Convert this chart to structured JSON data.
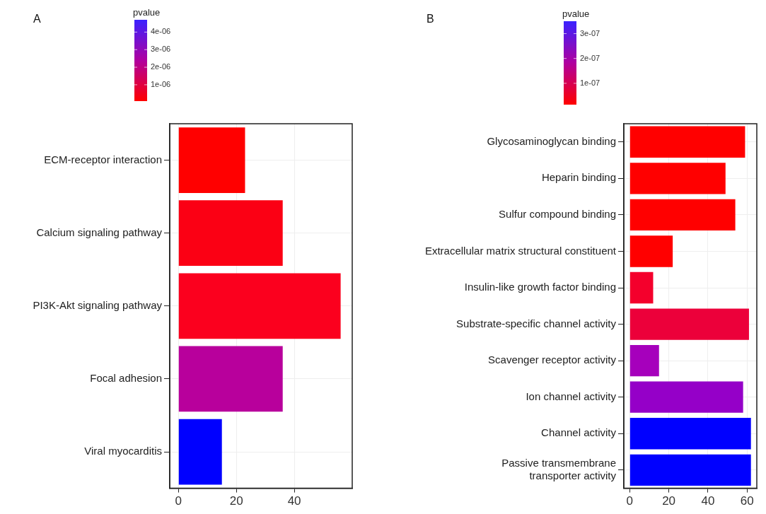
{
  "chart_data": [
    {
      "type": "bar",
      "title": "A",
      "orientation": "horizontal",
      "clabel": "pvalue",
      "clim": [
        7e-08,
        4.7e-06
      ],
      "cticks": [
        {
          "value": 1e-06,
          "label": "1e-06"
        },
        {
          "value": 2e-06,
          "label": "2e-06"
        },
        {
          "value": 3e-06,
          "label": "3e-06"
        },
        {
          "value": 4e-06,
          "label": "4e-06"
        }
      ],
      "categories": [
        "ECM-receptor interaction",
        "Calcium signaling pathway",
        "PI3K-Akt signaling pathway",
        "Focal adhesion",
        "Viral myocarditis"
      ],
      "values": [
        23,
        36,
        56,
        36,
        15
      ],
      "colors": [
        "#ff0000",
        "#fb0014",
        "#fb001e",
        "#b8009c",
        "#0000ff"
      ],
      "xlim": [
        -3,
        60
      ],
      "xticks": [
        0,
        20,
        40
      ],
      "grid": true,
      "legend": false
    },
    {
      "type": "bar",
      "title": "B",
      "orientation": "horizontal",
      "clabel": "pvalue",
      "clim": [
        1.4e-08,
        3.5e-07
      ],
      "cticks": [
        {
          "value": 1e-07,
          "label": "1e-07"
        },
        {
          "value": 2e-07,
          "label": "2e-07"
        },
        {
          "value": 3e-07,
          "label": "3e-07"
        }
      ],
      "categories": [
        "Glycosaminoglycan binding",
        "Heparin binding",
        "Sulfur compound binding",
        "Extracellular matrix structural constituent",
        "Insulin-like growth factor binding",
        "Substrate-specific channel activity",
        "Scavenger receptor activity",
        "Ion channel activity",
        "Channel activity",
        "Passive transmembrane\ntransporter activity"
      ],
      "values": [
        59,
        49,
        54,
        22,
        12,
        61,
        15,
        58,
        62,
        62
      ],
      "colors": [
        "#ff0000",
        "#ff0000",
        "#ff0000",
        "#ff0000",
        "#f4002c",
        "#ec003a",
        "#a600bc",
        "#9500c8",
        "#0000ff",
        "#0000ff"
      ],
      "xlim": [
        -3,
        65
      ],
      "xticks": [
        0,
        20,
        40,
        60
      ],
      "grid": true,
      "legend": false
    }
  ]
}
